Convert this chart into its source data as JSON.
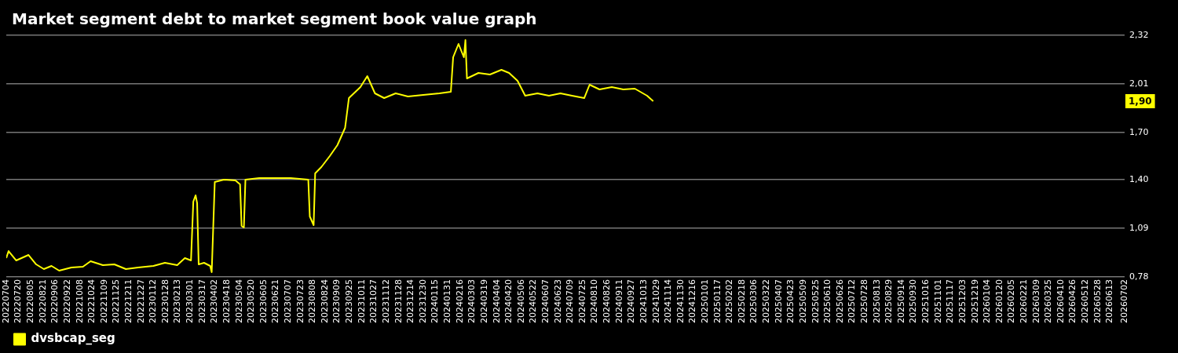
{
  "chart_data": {
    "type": "line",
    "title": "Market segment debt to market segment book value graph",
    "x": [
      "2022-07-04",
      "2022-07-07",
      "2022-07-17",
      "2022-08-02",
      "2022-08-12",
      "2022-08-22",
      "2022-09-01",
      "2022-09-11",
      "2022-09-27",
      "2022-10-12",
      "2022-10-22",
      "2022-11-07",
      "2022-11-22",
      "2022-12-07",
      "2022-12-23",
      "2023-01-12",
      "2023-01-27",
      "2023-02-12",
      "2023-02-22",
      "2023-03-02",
      "2023-03-05",
      "2023-03-08",
      "2023-03-10",
      "2023-03-12",
      "2023-03-19",
      "2023-03-27",
      "2023-03-29",
      "2023-04-02",
      "2023-04-14",
      "2023-04-29",
      "2023-05-05",
      "2023-05-07",
      "2023-05-10",
      "2023-05-12",
      "2023-05-30",
      "2023-06-19",
      "2023-07-10",
      "2023-08-02",
      "2023-08-04",
      "2023-08-09",
      "2023-08-11",
      "2023-08-19",
      "2023-08-30",
      "2023-09-09",
      "2023-09-19",
      "2023-09-24",
      "2023-10-09",
      "2023-10-18",
      "2023-10-28",
      "2023-11-09",
      "2023-11-24",
      "2023-12-10",
      "2023-12-30",
      "2024-01-20",
      "2024-02-04",
      "2024-02-07",
      "2024-02-14",
      "2024-02-21",
      "2024-02-23",
      "2024-02-25",
      "2024-03-11",
      "2024-03-26",
      "2024-04-10",
      "2024-04-20",
      "2024-05-01",
      "2024-05-11",
      "2024-05-27",
      "2024-06-11",
      "2024-06-26",
      "2024-07-11",
      "2024-07-27",
      "2024-08-03",
      "2024-08-16",
      "2024-09-01",
      "2024-09-16",
      "2024-10-01",
      "2024-10-17",
      "2024-10-25"
    ],
    "series": [
      {
        "name": "dvsbcap_seg",
        "color": "#ffff00",
        "values": [
          0.9,
          0.945,
          0.885,
          0.92,
          0.86,
          0.83,
          0.85,
          0.82,
          0.84,
          0.845,
          0.88,
          0.855,
          0.86,
          0.83,
          0.84,
          0.85,
          0.87,
          0.855,
          0.9,
          0.885,
          1.26,
          1.3,
          1.25,
          0.86,
          0.87,
          0.85,
          0.81,
          1.385,
          1.4,
          1.395,
          1.37,
          1.105,
          1.095,
          1.4,
          1.41,
          1.41,
          1.41,
          1.4,
          1.165,
          1.11,
          1.44,
          1.48,
          1.55,
          1.62,
          1.73,
          1.92,
          1.99,
          2.06,
          1.95,
          1.92,
          1.95,
          1.93,
          1.94,
          1.95,
          1.96,
          2.18,
          2.265,
          2.18,
          2.29,
          2.045,
          2.08,
          2.07,
          2.1,
          2.08,
          2.03,
          1.935,
          1.95,
          1.935,
          1.95,
          1.935,
          1.92,
          2.005,
          1.975,
          1.99,
          1.975,
          1.98,
          1.935,
          1.9
        ]
      }
    ],
    "xlim": [
      "2022-07-04",
      "2026-07-02"
    ],
    "xticks": [
      {
        "value": "2022-07-04",
        "label": "20220704"
      },
      {
        "value": "2022-07-20",
        "label": "20220720"
      },
      {
        "value": "2022-08-05",
        "label": "20220805"
      },
      {
        "value": "2022-08-21",
        "label": "20220821"
      },
      {
        "value": "2022-09-06",
        "label": "20220906"
      },
      {
        "value": "2022-09-22",
        "label": "20220922"
      },
      {
        "value": "2022-10-08",
        "label": "20221008"
      },
      {
        "value": "2022-10-24",
        "label": "20221024"
      },
      {
        "value": "2022-11-09",
        "label": "20221109"
      },
      {
        "value": "2022-11-25",
        "label": "20221125"
      },
      {
        "value": "2022-12-11",
        "label": "20221211"
      },
      {
        "value": "2022-12-27",
        "label": "20221227"
      },
      {
        "value": "2023-01-12",
        "label": "20230112"
      },
      {
        "value": "2023-01-28",
        "label": "20230128"
      },
      {
        "value": "2023-02-13",
        "label": "20230213"
      },
      {
        "value": "2023-03-01",
        "label": "20230301"
      },
      {
        "value": "2023-03-17",
        "label": "20230317"
      },
      {
        "value": "2023-04-02",
        "label": "20230402"
      },
      {
        "value": "2023-04-18",
        "label": "20230418"
      },
      {
        "value": "2023-05-04",
        "label": "20230504"
      },
      {
        "value": "2023-05-20",
        "label": "20230520"
      },
      {
        "value": "2023-06-05",
        "label": "20230605"
      },
      {
        "value": "2023-06-21",
        "label": "20230621"
      },
      {
        "value": "2023-07-07",
        "label": "20230707"
      },
      {
        "value": "2023-07-23",
        "label": "20230723"
      },
      {
        "value": "2023-08-08",
        "label": "20230808"
      },
      {
        "value": "2023-08-24",
        "label": "20230824"
      },
      {
        "value": "2023-09-09",
        "label": "20230909"
      },
      {
        "value": "2023-09-25",
        "label": "20230925"
      },
      {
        "value": "2023-10-11",
        "label": "20231011"
      },
      {
        "value": "2023-10-27",
        "label": "20231027"
      },
      {
        "value": "2023-11-12",
        "label": "20231112"
      },
      {
        "value": "2023-11-28",
        "label": "20231128"
      },
      {
        "value": "2023-12-14",
        "label": "20231214"
      },
      {
        "value": "2023-12-30",
        "label": "20231230"
      },
      {
        "value": "2024-01-15",
        "label": "20240115"
      },
      {
        "value": "2024-01-31",
        "label": "20240131"
      },
      {
        "value": "2024-02-16",
        "label": "20240216"
      },
      {
        "value": "2024-03-03",
        "label": "20240303"
      },
      {
        "value": "2024-03-19",
        "label": "20240319"
      },
      {
        "value": "2024-04-04",
        "label": "20240404"
      },
      {
        "value": "2024-04-20",
        "label": "20240420"
      },
      {
        "value": "2024-05-06",
        "label": "20240506"
      },
      {
        "value": "2024-05-22",
        "label": "20240522"
      },
      {
        "value": "2024-06-07",
        "label": "20240607"
      },
      {
        "value": "2024-06-23",
        "label": "20240623"
      },
      {
        "value": "2024-07-09",
        "label": "20240709"
      },
      {
        "value": "2024-07-25",
        "label": "20240725"
      },
      {
        "value": "2024-08-10",
        "label": "20240810"
      },
      {
        "value": "2024-08-26",
        "label": "20240826"
      },
      {
        "value": "2024-09-11",
        "label": "20240911"
      },
      {
        "value": "2024-09-27",
        "label": "20240927"
      },
      {
        "value": "2024-10-13",
        "label": "20241013"
      },
      {
        "value": "2024-10-29",
        "label": "20241029"
      },
      {
        "value": "2024-11-14",
        "label": "20241114"
      },
      {
        "value": "2024-11-30",
        "label": "20241130"
      },
      {
        "value": "2024-12-16",
        "label": "20241216"
      },
      {
        "value": "2025-01-01",
        "label": "20250101"
      },
      {
        "value": "2025-01-17",
        "label": "20250117"
      },
      {
        "value": "2025-02-02",
        "label": "20250202"
      },
      {
        "value": "2025-02-18",
        "label": "20250218"
      },
      {
        "value": "2025-03-06",
        "label": "20250306"
      },
      {
        "value": "2025-03-22",
        "label": "20250322"
      },
      {
        "value": "2025-04-07",
        "label": "20250407"
      },
      {
        "value": "2025-04-23",
        "label": "20250423"
      },
      {
        "value": "2025-05-09",
        "label": "20250509"
      },
      {
        "value": "2025-05-25",
        "label": "20250525"
      },
      {
        "value": "2025-06-10",
        "label": "20250610"
      },
      {
        "value": "2025-06-26",
        "label": "20250626"
      },
      {
        "value": "2025-07-12",
        "label": "20250712"
      },
      {
        "value": "2025-07-28",
        "label": "20250728"
      },
      {
        "value": "2025-08-13",
        "label": "20250813"
      },
      {
        "value": "2025-08-29",
        "label": "20250829"
      },
      {
        "value": "2025-09-14",
        "label": "20250914"
      },
      {
        "value": "2025-09-30",
        "label": "20250930"
      },
      {
        "value": "2025-10-16",
        "label": "20251016"
      },
      {
        "value": "2025-11-01",
        "label": "20251101"
      },
      {
        "value": "2025-11-17",
        "label": "20251117"
      },
      {
        "value": "2025-12-03",
        "label": "20251203"
      },
      {
        "value": "2025-12-19",
        "label": "20251219"
      },
      {
        "value": "2026-01-04",
        "label": "20260104"
      },
      {
        "value": "2026-01-20",
        "label": "20260120"
      },
      {
        "value": "2026-02-05",
        "label": "20260205"
      },
      {
        "value": "2026-02-21",
        "label": "20260221"
      },
      {
        "value": "2026-03-09",
        "label": "20260309"
      },
      {
        "value": "2026-03-25",
        "label": "20260325"
      },
      {
        "value": "2026-04-10",
        "label": "20260410"
      },
      {
        "value": "2026-04-26",
        "label": "20260426"
      },
      {
        "value": "2026-05-12",
        "label": "20260512"
      },
      {
        "value": "2026-05-28",
        "label": "20260528"
      },
      {
        "value": "2026-06-13",
        "label": "20260613"
      },
      {
        "value": "2026-07-02",
        "label": "20260702"
      }
    ],
    "ylim": [
      0.78,
      2.32
    ],
    "yticks": [
      {
        "value": 0.78,
        "label": "0,78"
      },
      {
        "value": 1.09,
        "label": "1,09"
      },
      {
        "value": 1.4,
        "label": "1,40"
      },
      {
        "value": 1.7,
        "label": "1,70"
      },
      {
        "value": 2.01,
        "label": "2,01"
      },
      {
        "value": 2.32,
        "label": "2,32"
      }
    ],
    "annotations": [
      {
        "text": "1,90",
        "y": 1.9
      }
    ],
    "grid": "y",
    "legend": "bottom left",
    "marker": "none",
    "line_style": "solid"
  }
}
